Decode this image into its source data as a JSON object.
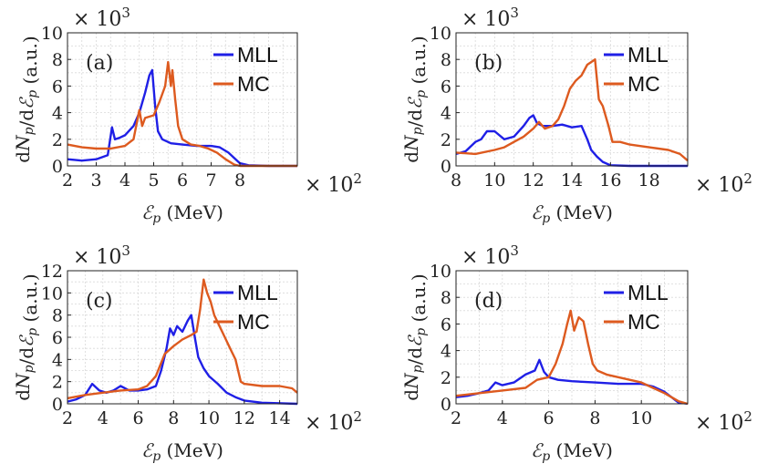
{
  "figure": {
    "legend_labels": [
      "MLL",
      "MC"
    ],
    "ylabel": "dN_p/dℰ_p (a.u.)",
    "xlabel": "ℰ_p (MeV)",
    "y_multiplier": "× 10^3",
    "x_multiplier": "× 10^2"
  },
  "colors": {
    "MLL": "#1f1fe6",
    "MC": "#dd5a1f"
  },
  "chart_data": [
    {
      "type": "line",
      "panel": "(a)",
      "xlim": [
        2,
        10
      ],
      "ylim": [
        0,
        10
      ],
      "xticks": [
        2,
        3,
        4,
        5,
        6,
        7,
        8
      ],
      "yticks": [
        0,
        2,
        4,
        6,
        8,
        10
      ],
      "xlabel": "ℰ_p (MeV)",
      "ylabel": "dN_p/dℰ_p (a.u.)",
      "grid": true,
      "legend": "top-right",
      "series": [
        {
          "name": "MLL",
          "x": [
            2,
            2.5,
            3,
            3.4,
            3.55,
            3.65,
            3.8,
            4.0,
            4.3,
            4.5,
            4.7,
            4.85,
            4.95,
            5.05,
            5.15,
            5.3,
            5.6,
            6.0,
            6.5,
            7.0,
            7.3,
            7.6,
            7.8,
            8.0,
            8.3,
            9.0,
            10.0
          ],
          "y": [
            0.5,
            0.4,
            0.5,
            0.8,
            2.9,
            2.0,
            2.1,
            2.3,
            3.0,
            4.0,
            5.5,
            6.8,
            7.2,
            4.5,
            2.6,
            2.0,
            1.7,
            1.6,
            1.5,
            1.5,
            1.4,
            1.0,
            0.6,
            0.2,
            0.05,
            0,
            0
          ]
        },
        {
          "name": "MC",
          "x": [
            2,
            2.5,
            3,
            3.5,
            4.0,
            4.3,
            4.5,
            4.6,
            4.7,
            5.0,
            5.2,
            5.4,
            5.5,
            5.6,
            5.65,
            5.75,
            5.85,
            6.0,
            6.3,
            6.6,
            6.9,
            7.2,
            7.5,
            7.8,
            8.0,
            9.0,
            10.0
          ],
          "y": [
            1.6,
            1.4,
            1.3,
            1.3,
            1.5,
            2.0,
            4.2,
            3.0,
            3.6,
            3.8,
            4.8,
            6.0,
            7.8,
            6.0,
            7.2,
            5.0,
            3.0,
            2.0,
            1.6,
            1.5,
            1.3,
            1.0,
            0.5,
            0.1,
            0,
            0,
            0
          ]
        }
      ]
    },
    {
      "type": "line",
      "panel": "(b)",
      "xlim": [
        8,
        20
      ],
      "ylim": [
        0,
        10
      ],
      "xticks": [
        8,
        10,
        12,
        14,
        16,
        18
      ],
      "yticks": [
        0,
        2,
        4,
        6,
        8,
        10
      ],
      "xlabel": "ℰ_p (MeV)",
      "ylabel": "dN_p/dℰ_p (a.u.)",
      "grid": true,
      "legend": "top-right",
      "series": [
        {
          "name": "MLL",
          "x": [
            8,
            8.5,
            9.0,
            9.3,
            9.6,
            10.0,
            10.5,
            11.0,
            11.5,
            11.8,
            12.0,
            12.2,
            12.5,
            13.0,
            13.5,
            14.0,
            14.5,
            14.8,
            15.0,
            15.3,
            15.6,
            16.0,
            17.0,
            20.0
          ],
          "y": [
            0.9,
            1.1,
            1.8,
            2.0,
            2.6,
            2.6,
            2.0,
            2.2,
            3.0,
            3.6,
            3.8,
            3.2,
            3.0,
            3.0,
            3.1,
            2.9,
            3.0,
            2.0,
            1.2,
            0.7,
            0.3,
            0.05,
            0,
            0
          ]
        },
        {
          "name": "MC",
          "x": [
            8,
            9.0,
            10.0,
            10.5,
            11.0,
            11.5,
            12.0,
            12.3,
            12.6,
            13.0,
            13.3,
            13.6,
            13.9,
            14.2,
            14.5,
            14.8,
            15.0,
            15.2,
            15.4,
            15.6,
            15.9,
            16.1,
            16.5,
            17.0,
            18.0,
            19.0,
            19.6,
            20.0
          ],
          "y": [
            1.0,
            0.9,
            1.2,
            1.4,
            1.8,
            2.2,
            2.8,
            3.3,
            2.8,
            3.0,
            3.5,
            4.5,
            5.8,
            6.4,
            6.8,
            7.6,
            7.8,
            8.0,
            5.0,
            4.5,
            3.0,
            1.8,
            1.8,
            1.6,
            1.4,
            1.2,
            0.9,
            0.4
          ]
        }
      ]
    },
    {
      "type": "line",
      "panel": "(c)",
      "xlim": [
        2,
        15
      ],
      "ylim": [
        0,
        12
      ],
      "xticks": [
        2,
        4,
        6,
        8,
        10,
        12,
        14
      ],
      "yticks": [
        0,
        2,
        4,
        6,
        8,
        10,
        12
      ],
      "xlabel": "ℰ_p (MeV)",
      "ylabel": "dN_p/dℰ_p (a.u.)",
      "grid": true,
      "legend": "top-right",
      "series": [
        {
          "name": "MLL",
          "x": [
            2,
            2.5,
            3.0,
            3.4,
            3.8,
            4.2,
            4.6,
            5.0,
            5.5,
            6.0,
            6.5,
            7.0,
            7.3,
            7.6,
            7.8,
            8.0,
            8.2,
            8.5,
            8.8,
            9.0,
            9.2,
            9.4,
            9.7,
            10.0,
            10.5,
            11.0,
            11.5,
            12.0,
            13.0,
            15.0
          ],
          "y": [
            0.2,
            0.4,
            0.8,
            1.8,
            1.2,
            1.0,
            1.2,
            1.6,
            1.2,
            1.2,
            1.3,
            1.6,
            3.0,
            5.0,
            6.8,
            6.2,
            7.0,
            6.5,
            7.5,
            8.0,
            6.0,
            4.2,
            3.2,
            2.5,
            1.8,
            1.0,
            0.6,
            0.3,
            0.1,
            0
          ]
        },
        {
          "name": "MC",
          "x": [
            2,
            3.0,
            4.0,
            5.0,
            6.0,
            6.5,
            7.0,
            7.5,
            8.0,
            8.5,
            9.0,
            9.3,
            9.5,
            9.7,
            9.9,
            10.1,
            10.3,
            10.6,
            10.9,
            11.2,
            11.5,
            11.8,
            12.0,
            13.0,
            14.0,
            14.7,
            15.0
          ],
          "y": [
            0.5,
            0.8,
            1.0,
            1.2,
            1.3,
            1.6,
            2.5,
            4.5,
            5.2,
            5.8,
            6.2,
            6.5,
            8.5,
            11.2,
            10.0,
            9.2,
            8.0,
            7.0,
            6.0,
            5.0,
            4.0,
            2.0,
            1.8,
            1.6,
            1.6,
            1.4,
            1.0
          ]
        }
      ]
    },
    {
      "type": "line",
      "panel": "(d)",
      "xlim": [
        2,
        12
      ],
      "ylim": [
        0,
        10
      ],
      "xticks": [
        2,
        4,
        6,
        8,
        10
      ],
      "yticks": [
        0,
        2,
        4,
        6,
        8,
        10
      ],
      "xlabel": "ℰ_p (MeV)",
      "ylabel": "dN_p/dℰ_p (a.u.)",
      "grid": true,
      "legend": "top-right",
      "series": [
        {
          "name": "MLL",
          "x": [
            2,
            2.5,
            3.0,
            3.4,
            3.7,
            4.0,
            4.5,
            5.0,
            5.4,
            5.6,
            5.8,
            6.0,
            6.4,
            7.0,
            8.0,
            9.0,
            10.0,
            10.5,
            11.0,
            11.3,
            11.6,
            12.0
          ],
          "y": [
            0.5,
            0.6,
            0.8,
            1.0,
            1.6,
            1.4,
            1.6,
            2.2,
            2.5,
            3.3,
            2.4,
            2.0,
            1.8,
            1.7,
            1.6,
            1.5,
            1.5,
            1.3,
            0.9,
            0.5,
            0.1,
            0
          ]
        },
        {
          "name": "MC",
          "x": [
            2,
            3.0,
            4.0,
            5.0,
            5.5,
            6.0,
            6.3,
            6.6,
            6.8,
            6.95,
            7.1,
            7.3,
            7.5,
            7.7,
            7.9,
            8.1,
            8.5,
            9.0,
            9.5,
            10.0,
            10.5,
            11.0,
            11.3,
            11.6,
            12.0
          ],
          "y": [
            0.6,
            0.8,
            1.0,
            1.2,
            1.8,
            2.0,
            3.0,
            4.5,
            6.0,
            7.0,
            5.5,
            6.5,
            6.2,
            4.5,
            3.0,
            2.5,
            2.2,
            2.0,
            1.8,
            1.6,
            1.2,
            0.8,
            0.5,
            0.2,
            0
          ]
        }
      ]
    }
  ]
}
